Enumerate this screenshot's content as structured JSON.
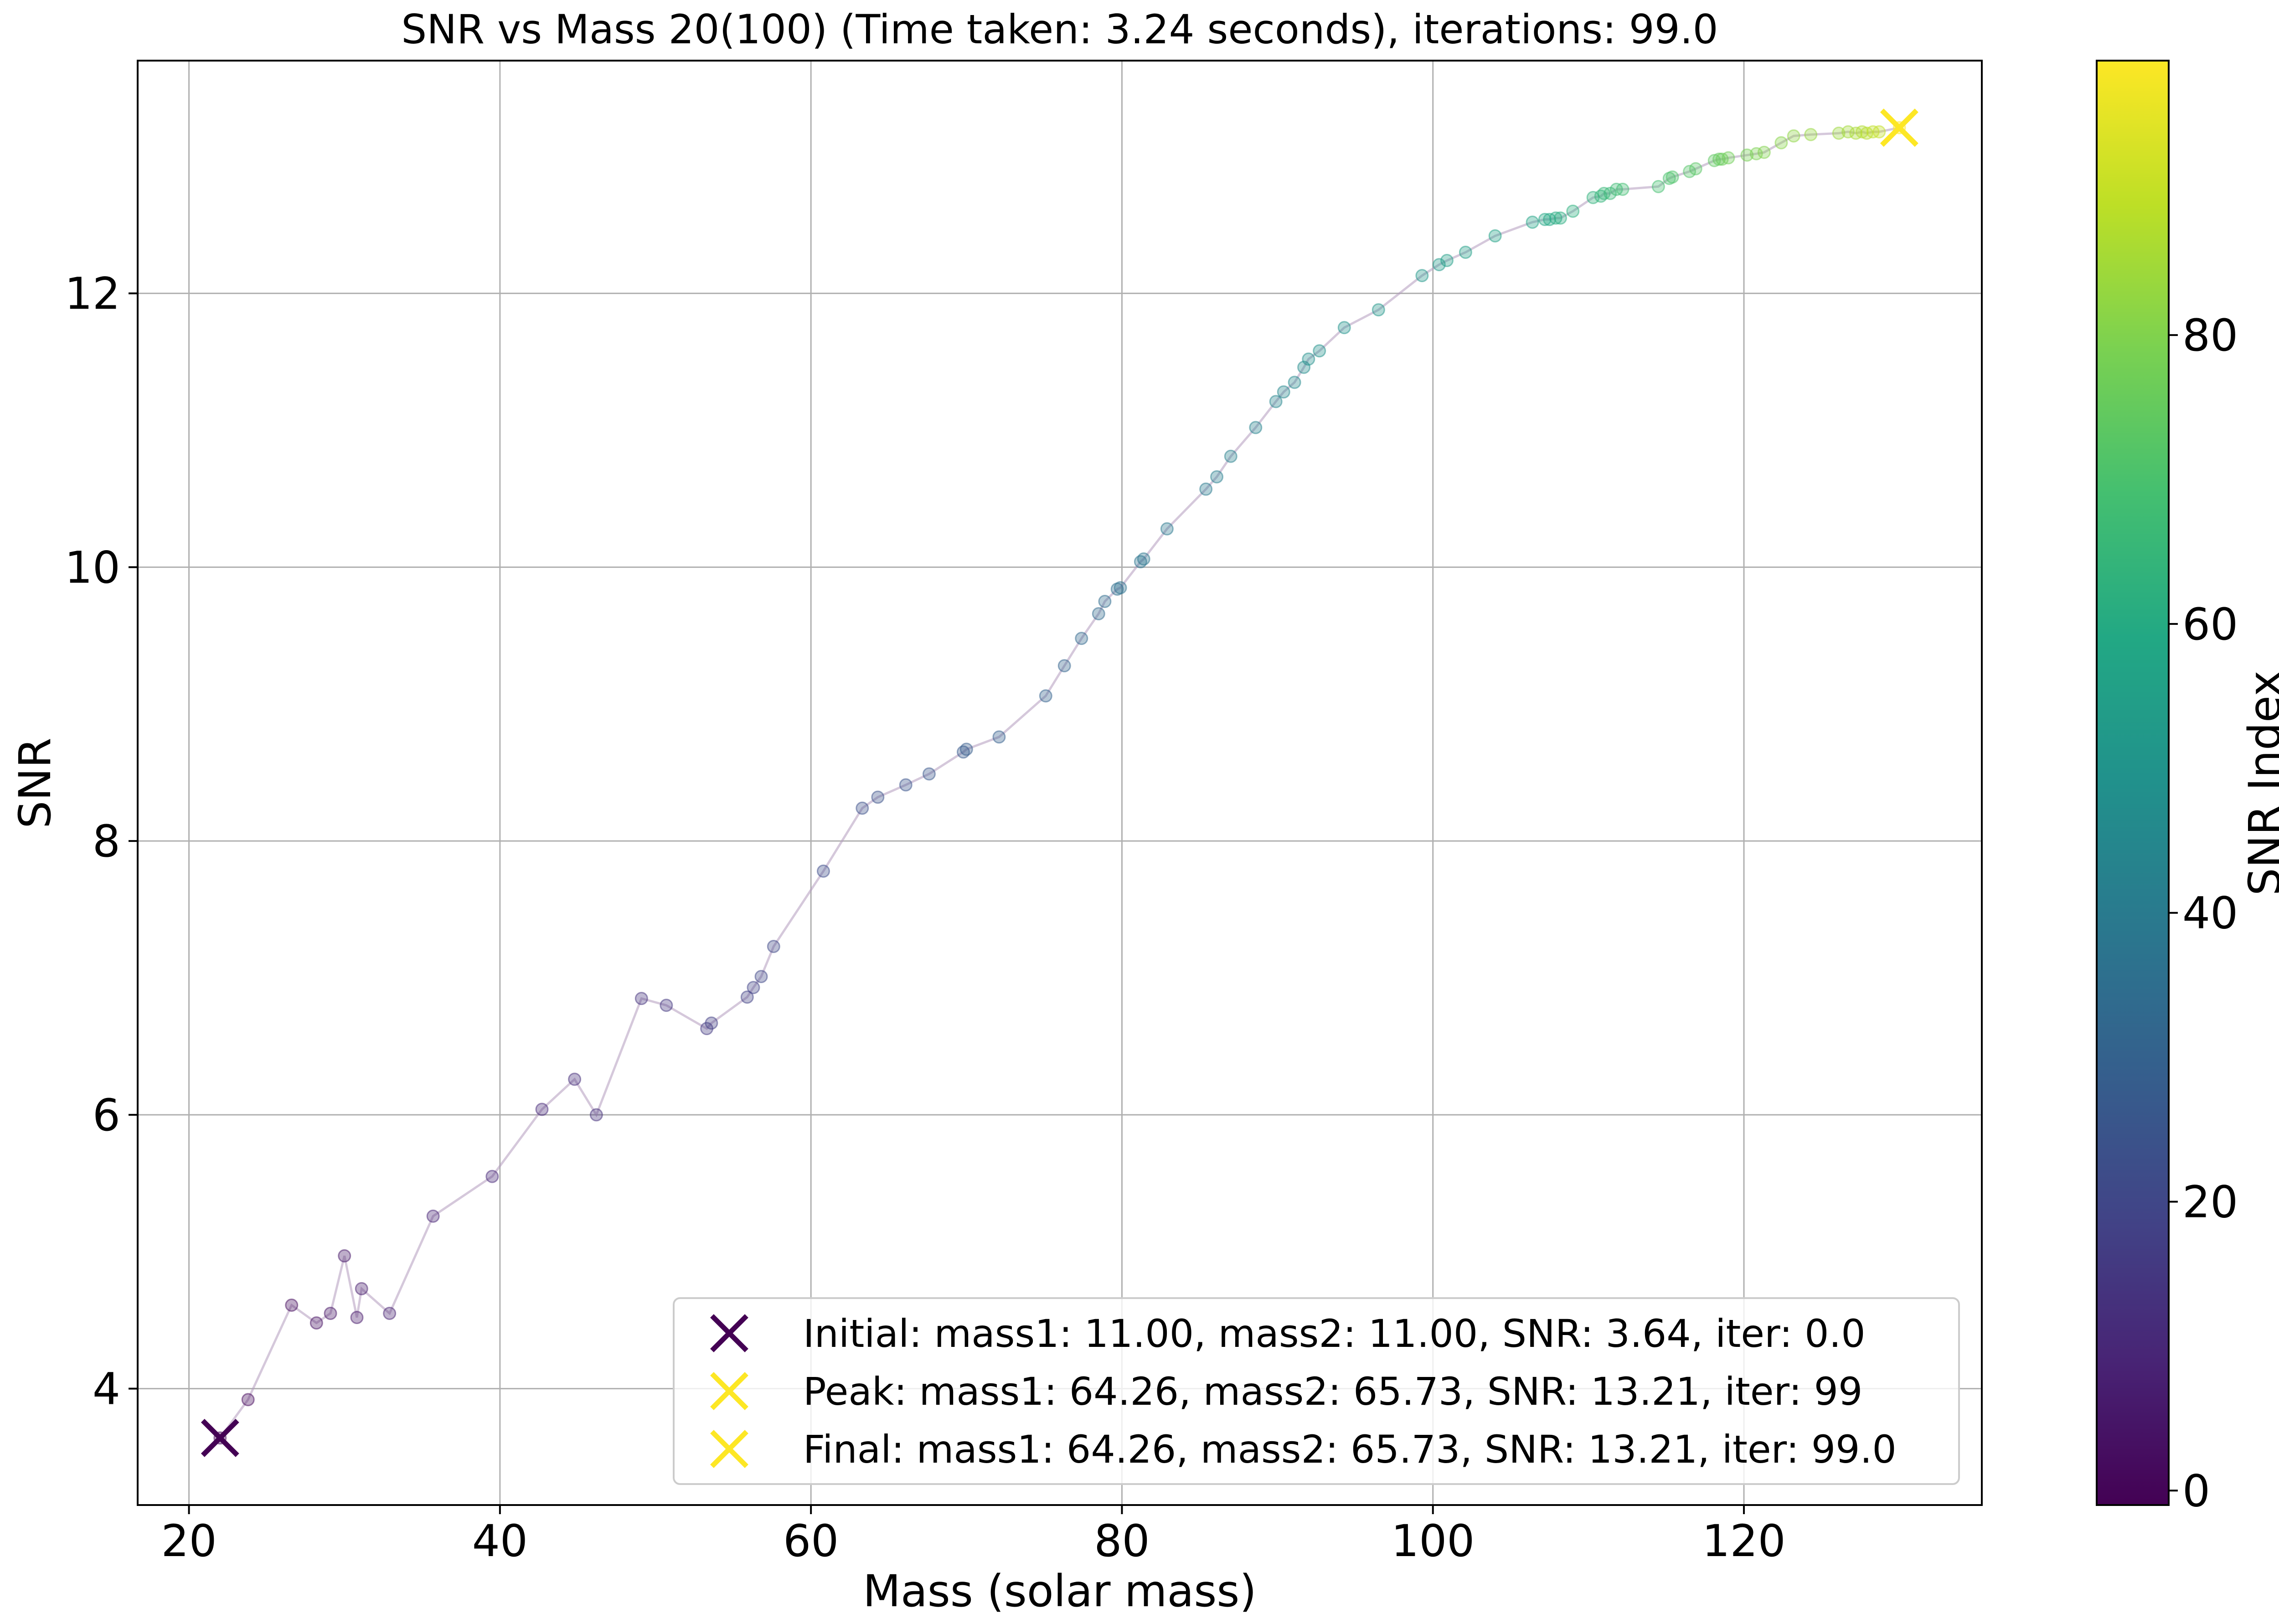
{
  "chart_data": {
    "type": "scatter",
    "title": "SNR vs Mass 20(100) (Time taken: 3.24 seconds), iterations: 99.0",
    "xlabel": "Mass (solar mass)",
    "ylabel": "SNR",
    "xlim": [
      16.7,
      135.3
    ],
    "ylim": [
      3.15,
      13.7
    ],
    "xticks": [
      20,
      40,
      60,
      80,
      100,
      120
    ],
    "yticks": [
      4,
      6,
      8,
      10,
      12
    ],
    "grid": true,
    "legend_position": "lower right",
    "colormap": "viridis",
    "colorbar": {
      "label": "SNR Index",
      "range": [
        -1,
        99
      ],
      "ticks": [
        0,
        20,
        40,
        60,
        80
      ]
    },
    "colors": {
      "line": "#b29bbd",
      "grid": "#b0b0b0",
      "initial_marker": "#440154",
      "peak_marker": "#fde725",
      "final_marker": "#fde725"
    },
    "series": [
      {
        "x": [
          22.0,
          23.8,
          26.6,
          28.2,
          29.1,
          30.0,
          30.8,
          31.1,
          32.9,
          35.7,
          39.5,
          42.7,
          44.8,
          46.2,
          49.1,
          50.7,
          53.3,
          53.6,
          55.9,
          56.3,
          56.8,
          57.6,
          60.8,
          63.3,
          64.3,
          66.1,
          67.6,
          69.8,
          70.0,
          72.1,
          75.1,
          76.3,
          77.4,
          78.5,
          78.9,
          79.7,
          79.9,
          81.2,
          81.4,
          82.9,
          85.4,
          86.1,
          87.0,
          88.6,
          89.9,
          90.4,
          91.1,
          91.7,
          92.0,
          92.7,
          94.3,
          96.5,
          99.3,
          100.4,
          100.9,
          102.1,
          104.0,
          106.4,
          107.2,
          107.5,
          107.9,
          108.2,
          109.0,
          110.3,
          110.8,
          111.0,
          111.4,
          111.8,
          112.2,
          114.5,
          115.2,
          115.4,
          116.5,
          116.9,
          118.1,
          118.4,
          118.6,
          119.0,
          120.2,
          120.8,
          121.3,
          122.4,
          123.2,
          124.3,
          126.1,
          126.7,
          127.2,
          127.6,
          127.9,
          128.3,
          128.7,
          130.0
        ],
        "y": [
          3.64,
          3.92,
          4.61,
          4.48,
          4.55,
          4.97,
          4.52,
          4.73,
          4.55,
          5.26,
          5.55,
          6.04,
          6.26,
          6.0,
          6.85,
          6.8,
          6.63,
          6.67,
          6.86,
          6.93,
          7.01,
          7.23,
          7.78,
          8.24,
          8.32,
          8.41,
          8.49,
          8.65,
          8.67,
          8.76,
          9.06,
          9.28,
          9.48,
          9.66,
          9.75,
          9.84,
          9.85,
          10.04,
          10.06,
          10.28,
          10.57,
          10.66,
          10.81,
          11.02,
          11.21,
          11.28,
          11.35,
          11.46,
          11.52,
          11.58,
          11.75,
          11.88,
          12.13,
          12.21,
          12.24,
          12.3,
          12.42,
          12.52,
          12.54,
          12.54,
          12.55,
          12.55,
          12.6,
          12.7,
          12.71,
          12.73,
          12.73,
          12.76,
          12.76,
          12.78,
          12.84,
          12.85,
          12.89,
          12.91,
          12.97,
          12.98,
          12.98,
          12.99,
          13.01,
          13.02,
          13.03,
          13.1,
          13.15,
          13.16,
          13.17,
          13.18,
          13.17,
          13.18,
          13.17,
          13.18,
          13.18,
          13.21
        ],
        "index": [
          0,
          1,
          2,
          3,
          4,
          5,
          6,
          7,
          8,
          9,
          10,
          11,
          12,
          13,
          14,
          15,
          16,
          17,
          18,
          19,
          20,
          21,
          22,
          23,
          24,
          25,
          26,
          27,
          28,
          29,
          30,
          31,
          32,
          33,
          34,
          35,
          36,
          37,
          38,
          39,
          40,
          41,
          42,
          43,
          44,
          45,
          46,
          47,
          48,
          49,
          50,
          51,
          52,
          53,
          54,
          55,
          56,
          57,
          58,
          59,
          60,
          61,
          62,
          63,
          64,
          65,
          66,
          67,
          68,
          69,
          70,
          71,
          72,
          73,
          74,
          75,
          76,
          77,
          78,
          79,
          80,
          81,
          82,
          83,
          84,
          85,
          86,
          87,
          88,
          89,
          90,
          99
        ]
      }
    ],
    "markers": [
      {
        "label": "Initial: mass1: 11.00, mass2: 11.00, SNR: 3.64, iter: 0.0",
        "x": 22.0,
        "y": 3.64,
        "color": "#440154"
      },
      {
        "label": "Peak: mass1: 64.26, mass2: 65.73, SNR: 13.21, iter: 99",
        "x": 129.99,
        "y": 13.21,
        "color": "#fde725"
      },
      {
        "label": "Final: mass1: 64.26, mass2: 65.73, SNR: 13.21, iter: 99.0",
        "x": 129.99,
        "y": 13.21,
        "color": "#fde725"
      }
    ]
  }
}
